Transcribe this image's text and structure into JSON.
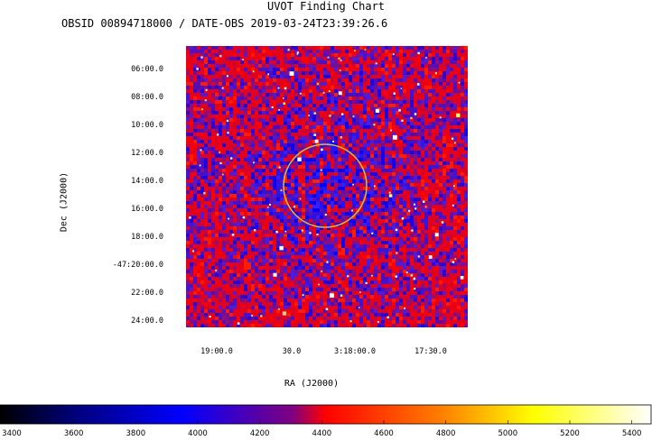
{
  "chart_data": {
    "type": "heatmap",
    "title": "UVOT Finding Chart",
    "subtitle": "OBSID 00894718000 / DATE-OBS 2019-03-24T23:39:26.6",
    "xlabel": "RA (J2000)",
    "ylabel": "Dec (J2000)",
    "x_ticks": [
      "19:00.0",
      "30.0",
      "3:18:00.0",
      "17:30.0"
    ],
    "y_ticks": [
      "06:00.0",
      "08:00.0",
      "10:00.0",
      "12:00.0",
      "14:00.0",
      "16:00.0",
      "18:00.0",
      "-47:20:00.0",
      "22:00.0",
      "24:00.0"
    ],
    "colorbar": {
      "min": 3400,
      "max": 5500,
      "ticks": [
        3400,
        3600,
        3800,
        4000,
        4200,
        4400,
        4600,
        4800,
        5000,
        5200,
        5400
      ],
      "colors": [
        "#000000",
        "#0000ff",
        "#ff0000",
        "#ffff00",
        "#ffffff"
      ]
    },
    "region_circle": {
      "color": "#d4c23a"
    },
    "grid": false
  }
}
